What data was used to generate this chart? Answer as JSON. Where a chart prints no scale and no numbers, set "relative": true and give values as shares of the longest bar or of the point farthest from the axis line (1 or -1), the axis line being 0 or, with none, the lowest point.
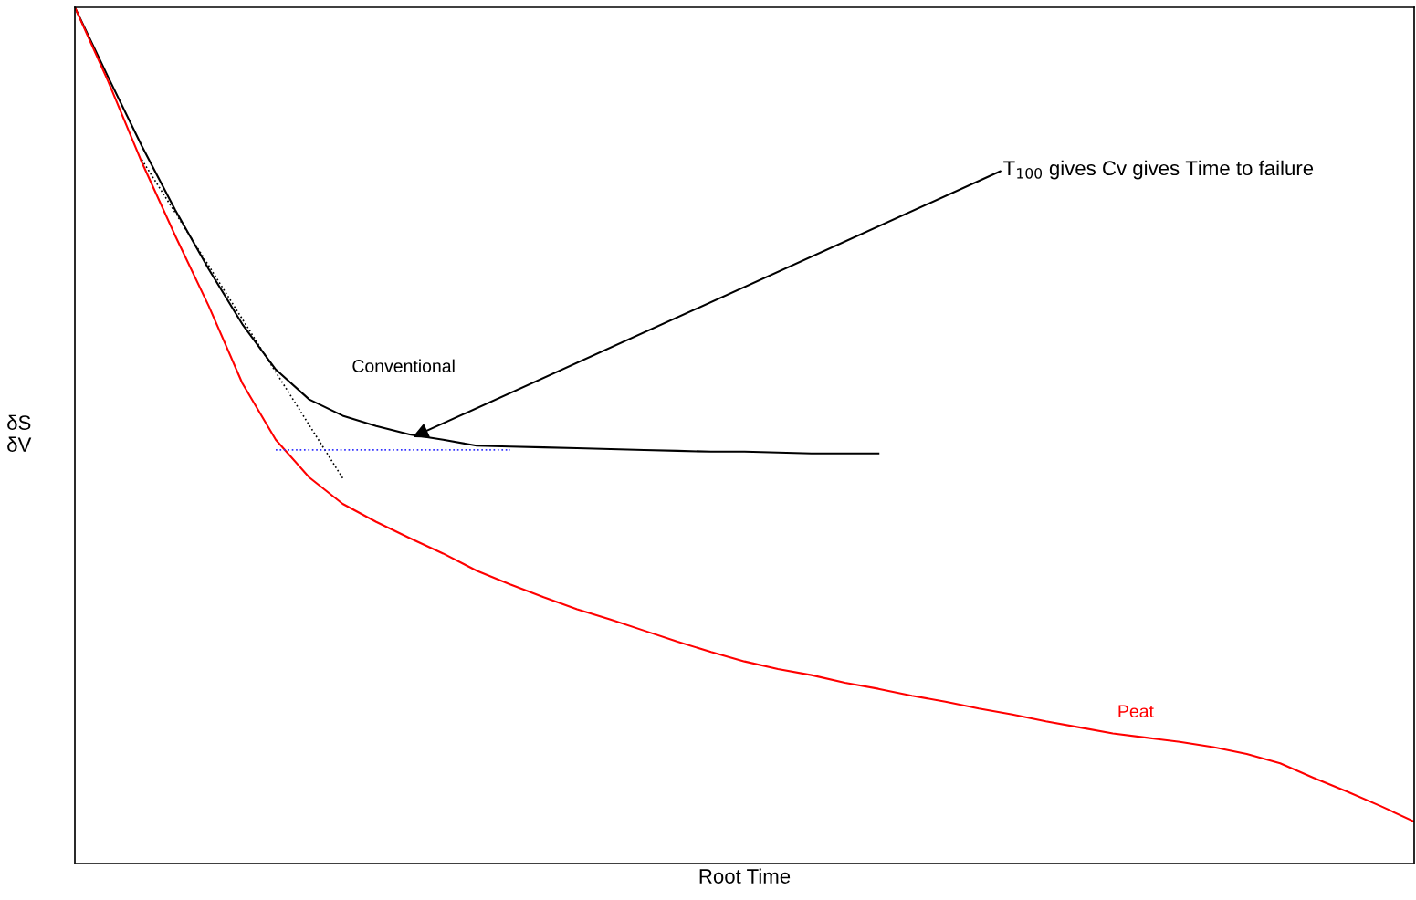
{
  "chart_data": {
    "type": "line",
    "relative": true,
    "xlabel": "Root Time",
    "ylabel": "δS\nδV",
    "categories": [
      null,
      null,
      null,
      null,
      null,
      null,
      null,
      null,
      null,
      null,
      null,
      null,
      null,
      null,
      null,
      null,
      null,
      null,
      null,
      null,
      null,
      null,
      null,
      null,
      null,
      null,
      null,
      null,
      null,
      null,
      null,
      null,
      null,
      null,
      null,
      null,
      null,
      null,
      null,
      null,
      null
    ],
    "series": [
      {
        "name": "Conventional",
        "color": "#000000",
        "line_style": "solid",
        "values": [
          1.0,
          0.918,
          0.838,
          0.763,
          0.694,
          0.63,
          0.577,
          0.542,
          0.523,
          0.511,
          0.501,
          0.495,
          0.488,
          0.487,
          0.486,
          0.485,
          0.484,
          0.483,
          0.482,
          0.481,
          0.481,
          0.48,
          0.479,
          0.479,
          0.479,
          null,
          null,
          null,
          null,
          null,
          null,
          null,
          null,
          null,
          null,
          null,
          null,
          null,
          null,
          null,
          null
        ]
      },
      {
        "name": "Peat",
        "color": "#ff0000",
        "line_style": "solid",
        "values": [
          1.0,
          0.913,
          0.819,
          0.733,
          0.651,
          0.561,
          0.495,
          0.451,
          0.42,
          0.399,
          0.38,
          0.362,
          0.342,
          0.326,
          0.311,
          0.297,
          0.285,
          0.272,
          0.259,
          0.247,
          0.236,
          0.227,
          0.22,
          0.211,
          0.204,
          0.196,
          0.189,
          0.181,
          0.174,
          0.166,
          0.159,
          0.152,
          0.147,
          0.142,
          0.136,
          0.128,
          0.117,
          0.1,
          0.084,
          0.067,
          0.049
        ]
      },
      {
        "color": "#000000",
        "line_style": "dotted",
        "values": [
          null,
          null,
          0.822,
          null,
          null,
          null,
          null,
          null,
          0.45,
          null,
          null,
          null,
          null,
          null,
          null,
          null,
          null,
          null,
          null,
          null,
          null,
          null,
          null,
          null,
          null,
          null,
          null,
          null,
          null,
          null,
          null,
          null,
          null,
          null,
          null,
          null,
          null,
          null,
          null,
          null,
          null
        ]
      },
      {
        "color": "#3333ff",
        "line_style": "dotted",
        "values": [
          null,
          null,
          null,
          null,
          null,
          null,
          0.483,
          null,
          null,
          null,
          null,
          null,
          null,
          0.483,
          null,
          null,
          null,
          null,
          null,
          null,
          null,
          null,
          null,
          null,
          null,
          null,
          null,
          null,
          null,
          null,
          null,
          null,
          null,
          null,
          null,
          null,
          null,
          null,
          null,
          null,
          null
        ]
      }
    ],
    "annotations": [
      "T$_{100}$ gives Cv gives Time to failure"
    ],
    "grid": false,
    "legend": false,
    "tick_labels": false
  }
}
